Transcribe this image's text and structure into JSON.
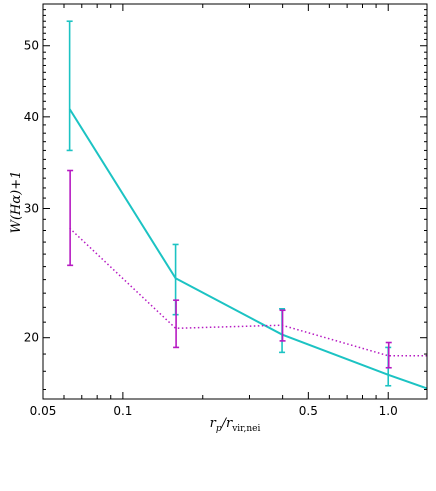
{
  "chart_data": {
    "type": "line",
    "xlabel": "r_p/r_vir,nei",
    "xlabel_main": "r",
    "xlabel_sub1": "p",
    "xlabel_mid": "/r",
    "xlabel_sub2": "vir,nei",
    "ylabel": "W(Hα)+1",
    "xscale": "log",
    "yscale": "log",
    "xlim": [
      0.05,
      1.4
    ],
    "ylim": [
      16.5,
      57
    ],
    "xticks": [
      {
        "value": 0.05,
        "label": "0.05"
      },
      {
        "value": 0.1,
        "label": "0.1"
      },
      {
        "value": 0.5,
        "label": "0.5"
      },
      {
        "value": 1.0,
        "label": "1.0"
      }
    ],
    "yticks": [
      {
        "value": 20,
        "label": "20"
      },
      {
        "value": 30,
        "label": "30"
      },
      {
        "value": 40,
        "label": "40"
      },
      {
        "value": 50,
        "label": "50"
      }
    ],
    "grid": false,
    "series": [
      {
        "color": "#1cc3c3",
        "style": "solid",
        "x": [
          0.063,
          0.158,
          0.398,
          1.0,
          1.58
        ],
        "y": [
          41,
          24.1,
          20.2,
          17.8,
          16.8
        ],
        "yerr_low": [
          36,
          21.5,
          19.1,
          17.2,
          null
        ],
        "yerr_high": [
          54,
          26.8,
          21.9,
          19.4,
          null
        ]
      },
      {
        "color": "#b61ac2",
        "style": "dotted",
        "x": [
          0.063,
          0.158,
          0.398,
          1.0,
          1.58
        ],
        "y": [
          28.2,
          20.6,
          20.8,
          18.9,
          18.9
        ],
        "yerr_low": [
          25.1,
          19.4,
          19.8,
          18.2,
          null
        ],
        "yerr_high": [
          33.8,
          22.5,
          21.8,
          19.7,
          null
        ]
      }
    ]
  }
}
